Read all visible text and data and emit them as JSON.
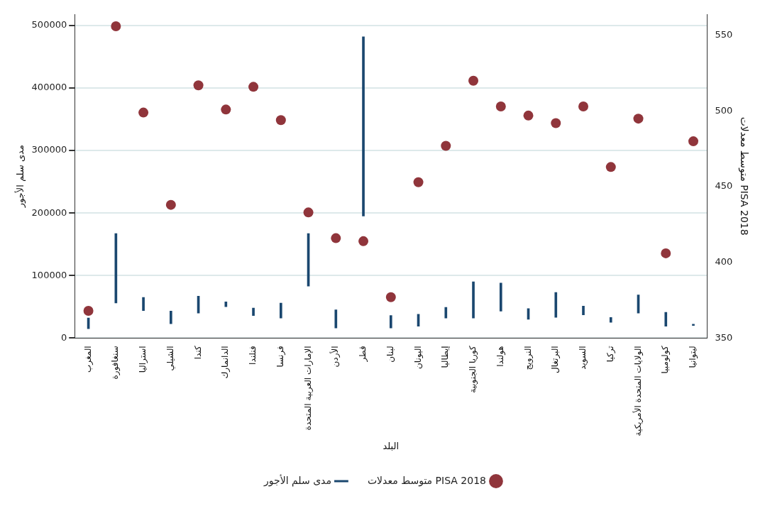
{
  "chart_data": {
    "type": "bar",
    "xlabel": "البلد",
    "ylabel": "مدى سلم الأجور",
    "y2label": "متوسط معدلات PISA 2018",
    "categories": [
      "المغرب",
      "سنغافورة",
      "استراليا",
      "الشيلي",
      "كندا",
      "الدانمارك",
      "فنلندا",
      "فرنسا",
      "الإمارات العربية المتحدة",
      "الأردن",
      "قطر",
      "لبنان",
      "اليونان",
      "إيطاليا",
      "كوريا الجنوبية",
      "هولندا",
      "النرويج",
      "البرتغال",
      "السويد",
      "تركيا",
      "الولايات المتحدة الأمريكية",
      "كولومبيا",
      "ليتوانيا"
    ],
    "series": [
      {
        "name": "مدى سلم الأجور",
        "color": "#1a476f",
        "base": [
          15000,
          56000,
          44000,
          23000,
          40000,
          50000,
          36000,
          32000,
          83000,
          16000,
          195000,
          16000,
          19000,
          32000,
          32000,
          43000,
          30000,
          33000,
          37000,
          25000,
          40000,
          19000,
          20000
        ],
        "values": [
          17000,
          111000,
          21000,
          20000,
          27000,
          8000,
          12000,
          24000,
          84000,
          29000,
          287000,
          20000,
          19000,
          17000,
          58000,
          45000,
          17000,
          40000,
          14000,
          8000,
          29000,
          22000,
          2000
        ]
      },
      {
        "name": "متوسط معدلات PISA 2018",
        "type": "scatter",
        "axis": "y2",
        "color": "#90353b",
        "values": [
          368,
          556,
          499,
          438,
          517,
          501,
          516,
          494,
          433,
          416,
          414,
          377,
          453,
          477,
          520,
          503,
          497,
          492,
          503,
          463,
          495,
          406,
          480
        ]
      }
    ],
    "ylim": [
      0,
      518000
    ],
    "yticks": [
      0,
      100000,
      200000,
      300000,
      400000,
      500000
    ],
    "y2lim": [
      350,
      564
    ],
    "y2ticks": [
      350,
      400,
      450,
      500,
      550
    ],
    "grid": "y",
    "legend": "bottom",
    "marker": "circle"
  }
}
